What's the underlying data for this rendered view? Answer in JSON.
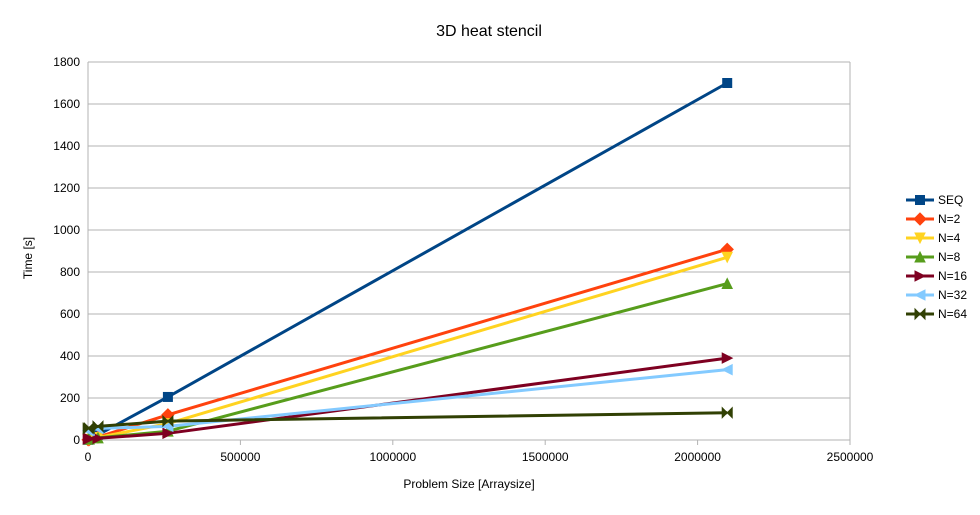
{
  "chart_data": {
    "type": "line",
    "title": "3D heat stencil",
    "xlabel": "Problem Size [Arraysize]",
    "ylabel": "Time [s]",
    "xlim": [
      0,
      2500000
    ],
    "ylim": [
      0,
      1800
    ],
    "x_ticks": [
      0,
      500000,
      1000000,
      1500000,
      2000000,
      2500000
    ],
    "x_tick_labels": [
      "0",
      "500000",
      "1000000",
      "1500000",
      "2000000",
      "2500000"
    ],
    "y_ticks": [
      0,
      200,
      400,
      600,
      800,
      1000,
      1200,
      1400,
      1600,
      1800
    ],
    "y_tick_labels": [
      "0",
      "200",
      "400",
      "600",
      "800",
      "1000",
      "1200",
      "1400",
      "1600",
      "1800"
    ],
    "grid": "horizontal",
    "legend_position": "right",
    "x": [
      512,
      4096,
      32768,
      262144,
      2097152
    ],
    "series": [
      {
        "name": "SEQ",
        "color": "#004586",
        "marker": "square",
        "values": [
          1,
          3,
          25,
          205,
          1700
        ]
      },
      {
        "name": "N=2",
        "color": "#ff420e",
        "marker": "diamond",
        "values": [
          1,
          2,
          14,
          120,
          908
        ]
      },
      {
        "name": "N=4",
        "color": "#ffd320",
        "marker": "triangle-down",
        "values": [
          2,
          3,
          12,
          78,
          870
        ]
      },
      {
        "name": "N=8",
        "color": "#579d1c",
        "marker": "triangle-up",
        "values": [
          4,
          5,
          10,
          42,
          745
        ]
      },
      {
        "name": "N=16",
        "color": "#7e0021",
        "marker": "triangle-right",
        "values": [
          5,
          6,
          8,
          32,
          390
        ]
      },
      {
        "name": "N=32",
        "color": "#83caff",
        "marker": "triangle-left",
        "values": [
          45,
          46,
          55,
          65,
          335
        ]
      },
      {
        "name": "N=64",
        "color": "#314004",
        "marker": "bowtie",
        "values": [
          55,
          57,
          65,
          90,
          130
        ]
      }
    ]
  }
}
